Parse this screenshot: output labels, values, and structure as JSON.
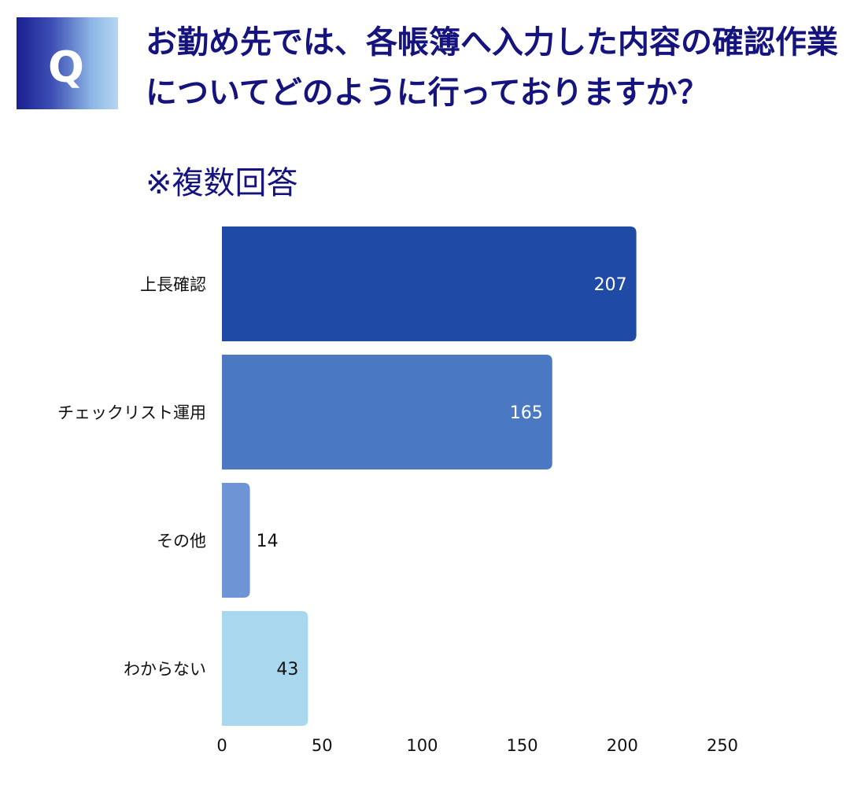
{
  "badge": {
    "letter": "Q"
  },
  "question": "お勤め先では、各帳簿へ入力した内容の確認作業についてどのように行っておりますか？",
  "note": "※複数回答",
  "colors": {
    "title": "#15137d",
    "bars": [
      "#1f4aa6",
      "#4a78c3",
      "#6e94d6",
      "#a9d8ee"
    ]
  },
  "chart_data": {
    "type": "bar",
    "orientation": "horizontal",
    "categories": [
      "上長確認",
      "チェックリスト運用",
      "その他",
      "わからない"
    ],
    "values": [
      207,
      165,
      14,
      43
    ],
    "xlim": [
      0,
      250
    ],
    "xticks": [
      0,
      50,
      100,
      150,
      200,
      250
    ],
    "grid": false,
    "legend": "none"
  }
}
